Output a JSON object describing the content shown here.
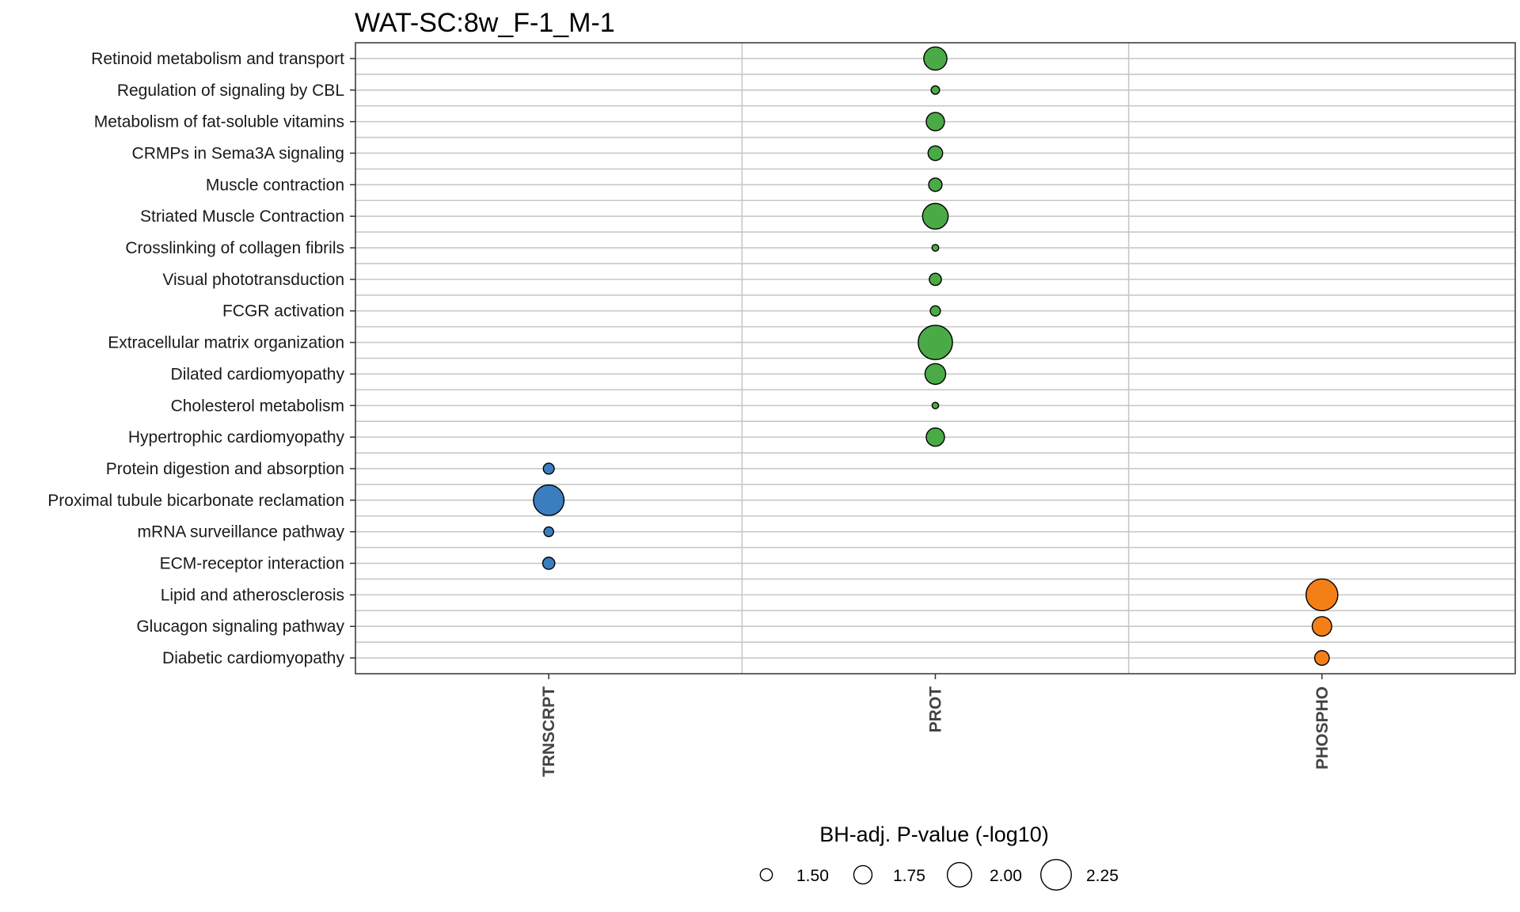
{
  "chart_data": {
    "type": "scatter",
    "title": "WAT-SC:8w_F-1_M-1",
    "xlabel": "",
    "ylabel": "",
    "categories_x": [
      "TRNSCRPT",
      "PROT",
      "PHOSPHO"
    ],
    "categories_y": [
      "Retinoid metabolism and transport",
      "Regulation of signaling by CBL",
      "Metabolism of fat-soluble vitamins",
      "CRMPs in Sema3A signaling",
      "Muscle contraction",
      "Striated Muscle Contraction",
      "Crosslinking of collagen fibrils",
      "Visual phototransduction",
      "FCGR activation",
      "Extracellular matrix organization",
      "Dilated cardiomyopathy",
      "Cholesterol metabolism",
      "Hypertrophic cardiomyopathy",
      "Protein digestion and absorption",
      "Proximal tubule bicarbonate reclamation",
      "mRNA surveillance pathway",
      "ECM-receptor interaction",
      "Lipid and atherosclerosis",
      "Glucagon signaling pathway",
      "Diabetic cardiomyopathy"
    ],
    "series": [
      {
        "name": "TRNSCRPT",
        "color": "#3a7ebf",
        "points": [
          {
            "pathway": "Protein digestion and absorption",
            "value": 1.45
          },
          {
            "pathway": "Proximal tubule bicarbonate reclamation",
            "value": 2.25
          },
          {
            "pathway": "mRNA surveillance pathway",
            "value": 1.4
          },
          {
            "pathway": "ECM-receptor interaction",
            "value": 1.5
          }
        ]
      },
      {
        "name": "PROT",
        "color": "#4aab46",
        "points": [
          {
            "pathway": "Retinoid metabolism and transport",
            "value": 1.95
          },
          {
            "pathway": "Regulation of signaling by CBL",
            "value": 1.35
          },
          {
            "pathway": "Metabolism of fat-soluble vitamins",
            "value": 1.75
          },
          {
            "pathway": "CRMPs in Sema3A signaling",
            "value": 1.6
          },
          {
            "pathway": "Muscle contraction",
            "value": 1.55
          },
          {
            "pathway": "Striated Muscle Contraction",
            "value": 2.05
          },
          {
            "pathway": "Crosslinking of collagen fibrils",
            "value": 1.28
          },
          {
            "pathway": "Visual phototransduction",
            "value": 1.5
          },
          {
            "pathway": "FCGR activation",
            "value": 1.42
          },
          {
            "pathway": "Extracellular matrix organization",
            "value": 2.4
          },
          {
            "pathway": "Dilated cardiomyopathy",
            "value": 1.85
          },
          {
            "pathway": "Cholesterol metabolism",
            "value": 1.27
          },
          {
            "pathway": "Hypertrophic cardiomyopathy",
            "value": 1.75
          }
        ]
      },
      {
        "name": "PHOSPHO",
        "color": "#f57f17",
        "points": [
          {
            "pathway": "Lipid and atherosclerosis",
            "value": 2.3
          },
          {
            "pathway": "Glucagon signaling pathway",
            "value": 1.8
          },
          {
            "pathway": "Diabetic cardiomyopathy",
            "value": 1.6
          }
        ]
      }
    ],
    "size_legend": {
      "title": "BH-adj. P-value (-log10)",
      "values": [
        1.5,
        1.75,
        2.0,
        2.25
      ],
      "labels": [
        "1.50",
        "1.75",
        "2.00",
        "2.25"
      ]
    },
    "grid": true,
    "legend_position": "bottom"
  }
}
